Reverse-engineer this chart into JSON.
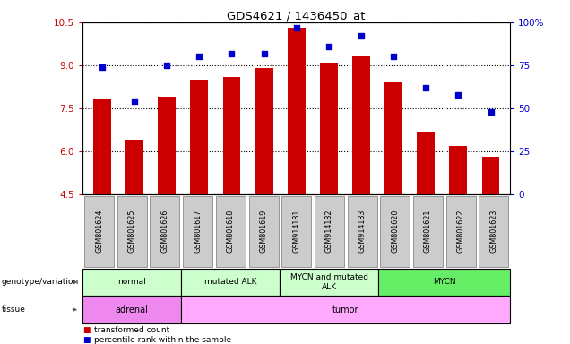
{
  "title": "GDS4621 / 1436450_at",
  "samples": [
    "GSM801624",
    "GSM801625",
    "GSM801626",
    "GSM801617",
    "GSM801618",
    "GSM801619",
    "GSM914181",
    "GSM914182",
    "GSM914183",
    "GSM801620",
    "GSM801621",
    "GSM801622",
    "GSM801623"
  ],
  "bar_values": [
    7.8,
    6.4,
    7.9,
    8.5,
    8.6,
    8.9,
    10.3,
    9.1,
    9.3,
    8.4,
    6.7,
    6.2,
    5.8
  ],
  "dot_values": [
    74,
    54,
    75,
    80,
    82,
    82,
    97,
    86,
    92,
    80,
    62,
    58,
    48
  ],
  "bar_color": "#cc0000",
  "dot_color": "#0000cc",
  "ylim_left": [
    4.5,
    10.5
  ],
  "ylim_right": [
    0,
    100
  ],
  "yticks_left": [
    4.5,
    6.0,
    7.5,
    9.0,
    10.5
  ],
  "yticks_right": [
    0,
    25,
    50,
    75,
    100
  ],
  "ytick_labels_right": [
    "0",
    "25",
    "50",
    "75",
    "100%"
  ],
  "genotype_groups": [
    {
      "label": "normal",
      "start": 0,
      "end": 3,
      "color": "#ccffcc"
    },
    {
      "label": "mutated ALK",
      "start": 3,
      "end": 6,
      "color": "#ccffcc"
    },
    {
      "label": "MYCN and mutated\nALK",
      "start": 6,
      "end": 9,
      "color": "#ccffcc"
    },
    {
      "label": "MYCN",
      "start": 9,
      "end": 13,
      "color": "#66ee66"
    }
  ],
  "tissue_groups": [
    {
      "label": "adrenal",
      "start": 0,
      "end": 3,
      "color": "#ee88ee"
    },
    {
      "label": "tumor",
      "start": 3,
      "end": 13,
      "color": "#ffaaff"
    }
  ],
  "legend_bar_label": "transformed count",
  "legend_dot_label": "percentile rank within the sample",
  "bar_color_tick": "#cc0000",
  "dot_color_tick": "#0000cc"
}
